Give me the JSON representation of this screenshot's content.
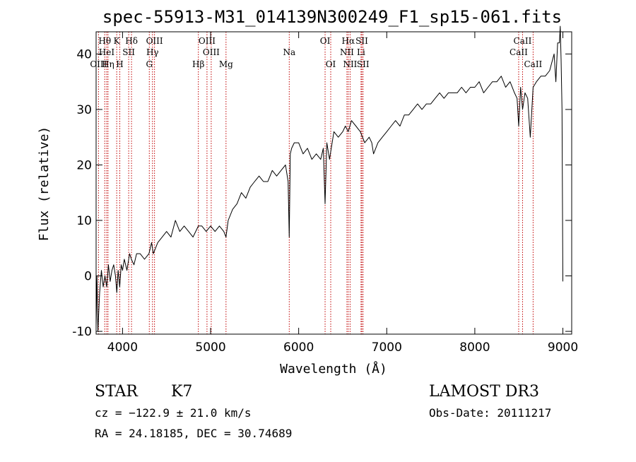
{
  "chart_data": {
    "type": "line",
    "title": "spec-55913-M31_014139N300249_F1_sp15-061.fits",
    "xlabel": "Wavelength (Å)",
    "ylabel": "Flux (relative)",
    "xlim": [
      3700,
      9100
    ],
    "ylim": [
      -10.5,
      44
    ],
    "xticks": [
      4000,
      5000,
      6000,
      7000,
      8000,
      9000
    ],
    "yticks": [
      -10,
      0,
      10,
      20,
      30,
      40
    ],
    "series": [
      {
        "name": "flux",
        "x": [
          3700,
          3710,
          3720,
          3740,
          3760,
          3780,
          3800,
          3820,
          3840,
          3860,
          3880,
          3900,
          3920,
          3935,
          3950,
          3968,
          3985,
          4000,
          4020,
          4050,
          4080,
          4100,
          4130,
          4160,
          4200,
          4250,
          4300,
          4330,
          4350,
          4400,
          4450,
          4500,
          4550,
          4600,
          4650,
          4700,
          4750,
          4800,
          4861,
          4900,
          4950,
          5000,
          5050,
          5100,
          5150,
          5175,
          5200,
          5250,
          5300,
          5350,
          5400,
          5450,
          5500,
          5550,
          5600,
          5650,
          5700,
          5750,
          5800,
          5850,
          5880,
          5893,
          5905,
          5920,
          5950,
          6000,
          6050,
          6100,
          6150,
          6200,
          6250,
          6280,
          6300,
          6320,
          6350,
          6400,
          6450,
          6500,
          6530,
          6563,
          6600,
          6650,
          6700,
          6750,
          6800,
          6830,
          6850,
          6900,
          6950,
          7000,
          7050,
          7100,
          7150,
          7200,
          7250,
          7300,
          7350,
          7400,
          7450,
          7500,
          7550,
          7600,
          7650,
          7700,
          7750,
          7800,
          7850,
          7900,
          7950,
          8000,
          8050,
          8100,
          8150,
          8200,
          8250,
          8300,
          8350,
          8400,
          8450,
          8480,
          8498,
          8520,
          8542,
          8570,
          8600,
          8630,
          8662,
          8700,
          8750,
          8800,
          8850,
          8900,
          8920,
          8940,
          8960,
          8970,
          8980,
          8990,
          9000
        ],
        "y": [
          -9,
          0,
          -10,
          -3,
          1,
          -2,
          0,
          -2,
          2,
          -1,
          1,
          2,
          0,
          -3,
          1,
          -2,
          2,
          1,
          3,
          1,
          4,
          3,
          2,
          4,
          4,
          3,
          4,
          6,
          4,
          6,
          7,
          8,
          7,
          10,
          8,
          9,
          8,
          7,
          9,
          9,
          8,
          9,
          8,
          9,
          8,
          7,
          10,
          12,
          13,
          15,
          14,
          16,
          17,
          18,
          17,
          17,
          19,
          18,
          19,
          20,
          17,
          7,
          22,
          23,
          24,
          24,
          22,
          23,
          21,
          22,
          21,
          23,
          13,
          24,
          21,
          26,
          25,
          26,
          27,
          26,
          28,
          27,
          26,
          24,
          25,
          24,
          22,
          24,
          25,
          26,
          27,
          28,
          27,
          29,
          29,
          30,
          31,
          30,
          31,
          31,
          32,
          33,
          32,
          33,
          33,
          33,
          34,
          33,
          34,
          34,
          35,
          33,
          34,
          35,
          35,
          36,
          34,
          35,
          33,
          32,
          27,
          34,
          30,
          33,
          32,
          25,
          34,
          35,
          36,
          36,
          37,
          40,
          35,
          42,
          42,
          45,
          39,
          30,
          -1
        ]
      }
    ],
    "spectral_lines": [
      {
        "label": "Hθ",
        "wavelength": 3798,
        "row": 1
      },
      {
        "label": "OIII",
        "wavelength": 3727,
        "row": 3
      },
      {
        "label": "HeI",
        "wavelength": 3820,
        "row": 2
      },
      {
        "label": "Hη",
        "wavelength": 3835,
        "row": 3
      },
      {
        "label": "K",
        "wavelength": 3934,
        "row": 1
      },
      {
        "label": "SII",
        "wavelength": 4070,
        "row": 2
      },
      {
        "label": "H",
        "wavelength": 3969,
        "row": 3
      },
      {
        "label": "Hδ",
        "wavelength": 4102,
        "row": 1
      },
      {
        "label": "OIII",
        "wavelength": 4363,
        "row": 1
      },
      {
        "label": "Hγ",
        "wavelength": 4340,
        "row": 2
      },
      {
        "label": "G",
        "wavelength": 4304,
        "row": 3
      },
      {
        "label": "OIII",
        "wavelength": 4959,
        "row": 1
      },
      {
        "label": "OIII",
        "wavelength": 5007,
        "row": 2
      },
      {
        "label": "Hβ",
        "wavelength": 4861,
        "row": 3
      },
      {
        "label": "Mg",
        "wavelength": 5175,
        "row": 3
      },
      {
        "label": "Na",
        "wavelength": 5893,
        "row": 2
      },
      {
        "label": "OI",
        "wavelength": 6300,
        "row": 1
      },
      {
        "label": "OI",
        "wavelength": 6364,
        "row": 3
      },
      {
        "label": "Hα",
        "wavelength": 6563,
        "row": 1
      },
      {
        "label": "NII",
        "wavelength": 6548,
        "row": 2
      },
      {
        "label": "NII",
        "wavelength": 6584,
        "row": 3
      },
      {
        "label": "SII",
        "wavelength": 6717,
        "row": 1
      },
      {
        "label": "Li",
        "wavelength": 6708,
        "row": 2
      },
      {
        "label": "SII",
        "wavelength": 6731,
        "row": 3
      },
      {
        "label": "CaII",
        "wavelength": 8542,
        "row": 1
      },
      {
        "label": "CaII",
        "wavelength": 8498,
        "row": 2
      },
      {
        "label": "CaII",
        "wavelength": 8662,
        "row": 3
      }
    ]
  },
  "info": {
    "object_class": "STAR",
    "subclass": "K7",
    "survey": "LAMOST DR3",
    "cz": "cz = −122.9 ± 21.0 km/s",
    "obs_date": "Obs-Date: 20111217",
    "ra_dec": "RA =  24.18185, DEC =  30.74689"
  },
  "colors": {
    "line": "#000000",
    "marker": "#c00000",
    "background": "#ffffff"
  }
}
